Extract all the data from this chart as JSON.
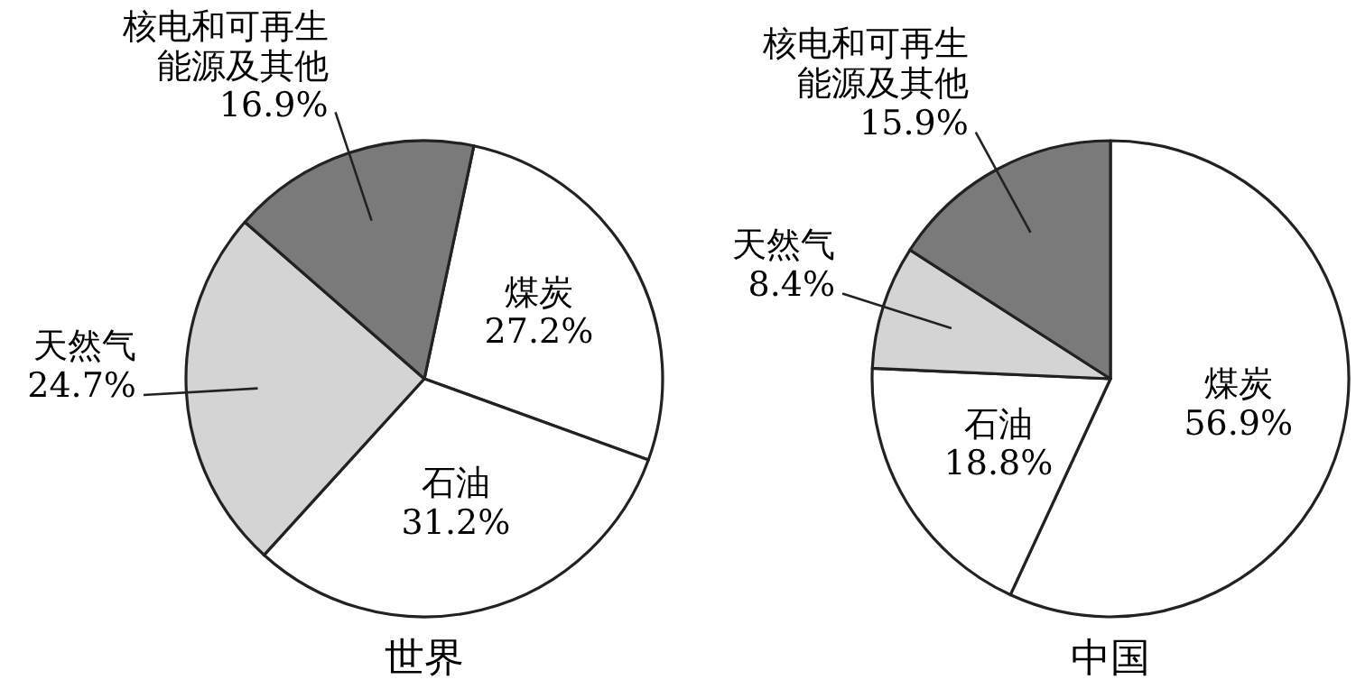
{
  "chart_data": [
    {
      "type": "pie",
      "title": "世界",
      "categories": [
        "煤炭",
        "石油",
        "天然气",
        "核电和可再生能源及其他"
      ],
      "values": [
        27.2,
        31.2,
        24.7,
        16.9
      ],
      "colors": [
        "#ffffff",
        "#ffffff",
        "#d4d4d4",
        "#7a7a7a"
      ],
      "value_labels": [
        "27.2%",
        "31.2%",
        "24.7%",
        "16.9%"
      ]
    },
    {
      "type": "pie",
      "title": "中国",
      "categories": [
        "煤炭",
        "石油",
        "天然气",
        "核电和可再生能源及其他"
      ],
      "values": [
        56.9,
        18.8,
        8.4,
        15.9
      ],
      "colors": [
        "#ffffff",
        "#ffffff",
        "#d4d4d4",
        "#7a7a7a"
      ],
      "value_labels": [
        "56.9%",
        "18.8%",
        "8.4%",
        "15.9%"
      ]
    }
  ]
}
